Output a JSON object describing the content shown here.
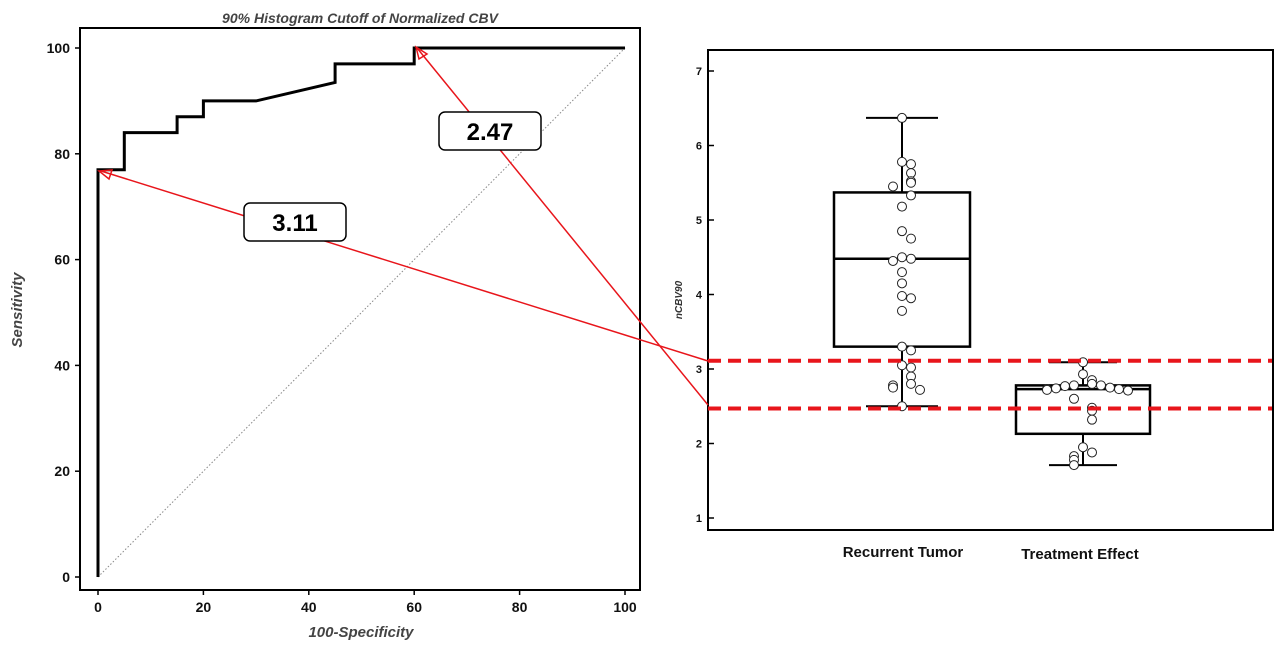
{
  "chart_data": [
    {
      "type": "line",
      "title": "90% Histogram Cutoff of Normalized CBV",
      "xlabel": "100-Specificity",
      "ylabel": "Sensitivity",
      "xlim": [
        0,
        100
      ],
      "ylim": [
        0,
        100
      ],
      "xticks": [
        "0",
        "20",
        "40",
        "60",
        "80",
        "100"
      ],
      "yticks": [
        "0",
        "20",
        "40",
        "60",
        "80",
        "100"
      ],
      "series": [
        {
          "x": [
            0,
            0,
            0,
            5,
            5,
            15,
            15,
            20,
            20,
            30,
            45,
            45,
            60,
            60,
            100
          ],
          "y": [
            0,
            0,
            77,
            77,
            84,
            84,
            87,
            87,
            90,
            90,
            93.5,
            97,
            97,
            100,
            100
          ]
        }
      ],
      "reference_line": {
        "x": [
          0,
          100
        ],
        "y": [
          0,
          100
        ],
        "style": "dotted"
      },
      "grid": false
    },
    {
      "type": "box",
      "ylabel": "nCBV90",
      "ylim": [
        0.85,
        7.15
      ],
      "yticks": [
        "1",
        "2",
        "3",
        "4",
        "5",
        "6",
        "7"
      ],
      "categories": [
        "Recurrent Tumor",
        "Treatment Effect"
      ],
      "boxes": [
        {
          "whisker_low": 2.5,
          "q1": 3.3,
          "median": 4.48,
          "q3": 5.37,
          "whisker_high": 6.37,
          "points": [
            6.37,
            5.78,
            5.75,
            5.63,
            5.52,
            5.5,
            5.45,
            5.33,
            5.18,
            4.85,
            4.75,
            4.5,
            4.48,
            4.45,
            4.3,
            4.15,
            3.98,
            3.95,
            3.78,
            3.3,
            3.25,
            3.05,
            3.02,
            2.9,
            2.8,
            2.78,
            2.75,
            2.72,
            2.5
          ]
        },
        {
          "whisker_low": 1.71,
          "q1": 2.13,
          "median": 2.73,
          "q3": 2.78,
          "whisker_high": 3.09,
          "points": [
            3.09,
            2.93,
            2.85,
            2.8,
            2.78,
            2.78,
            2.77,
            2.75,
            2.74,
            2.73,
            2.73,
            2.72,
            2.71,
            2.6,
            2.48,
            2.44,
            2.32,
            1.95,
            1.88,
            1.83,
            1.78,
            1.71
          ]
        }
      ],
      "reference_lines": [
        3.11,
        2.47
      ]
    }
  ],
  "annotations": [
    {
      "label": "3.11",
      "color": "#e8151b"
    },
    {
      "label": "2.47",
      "color": "#e8151b"
    }
  ],
  "colors": {
    "cutoff": "#e8151b",
    "line": "#000000",
    "diagonal": "#888888"
  }
}
